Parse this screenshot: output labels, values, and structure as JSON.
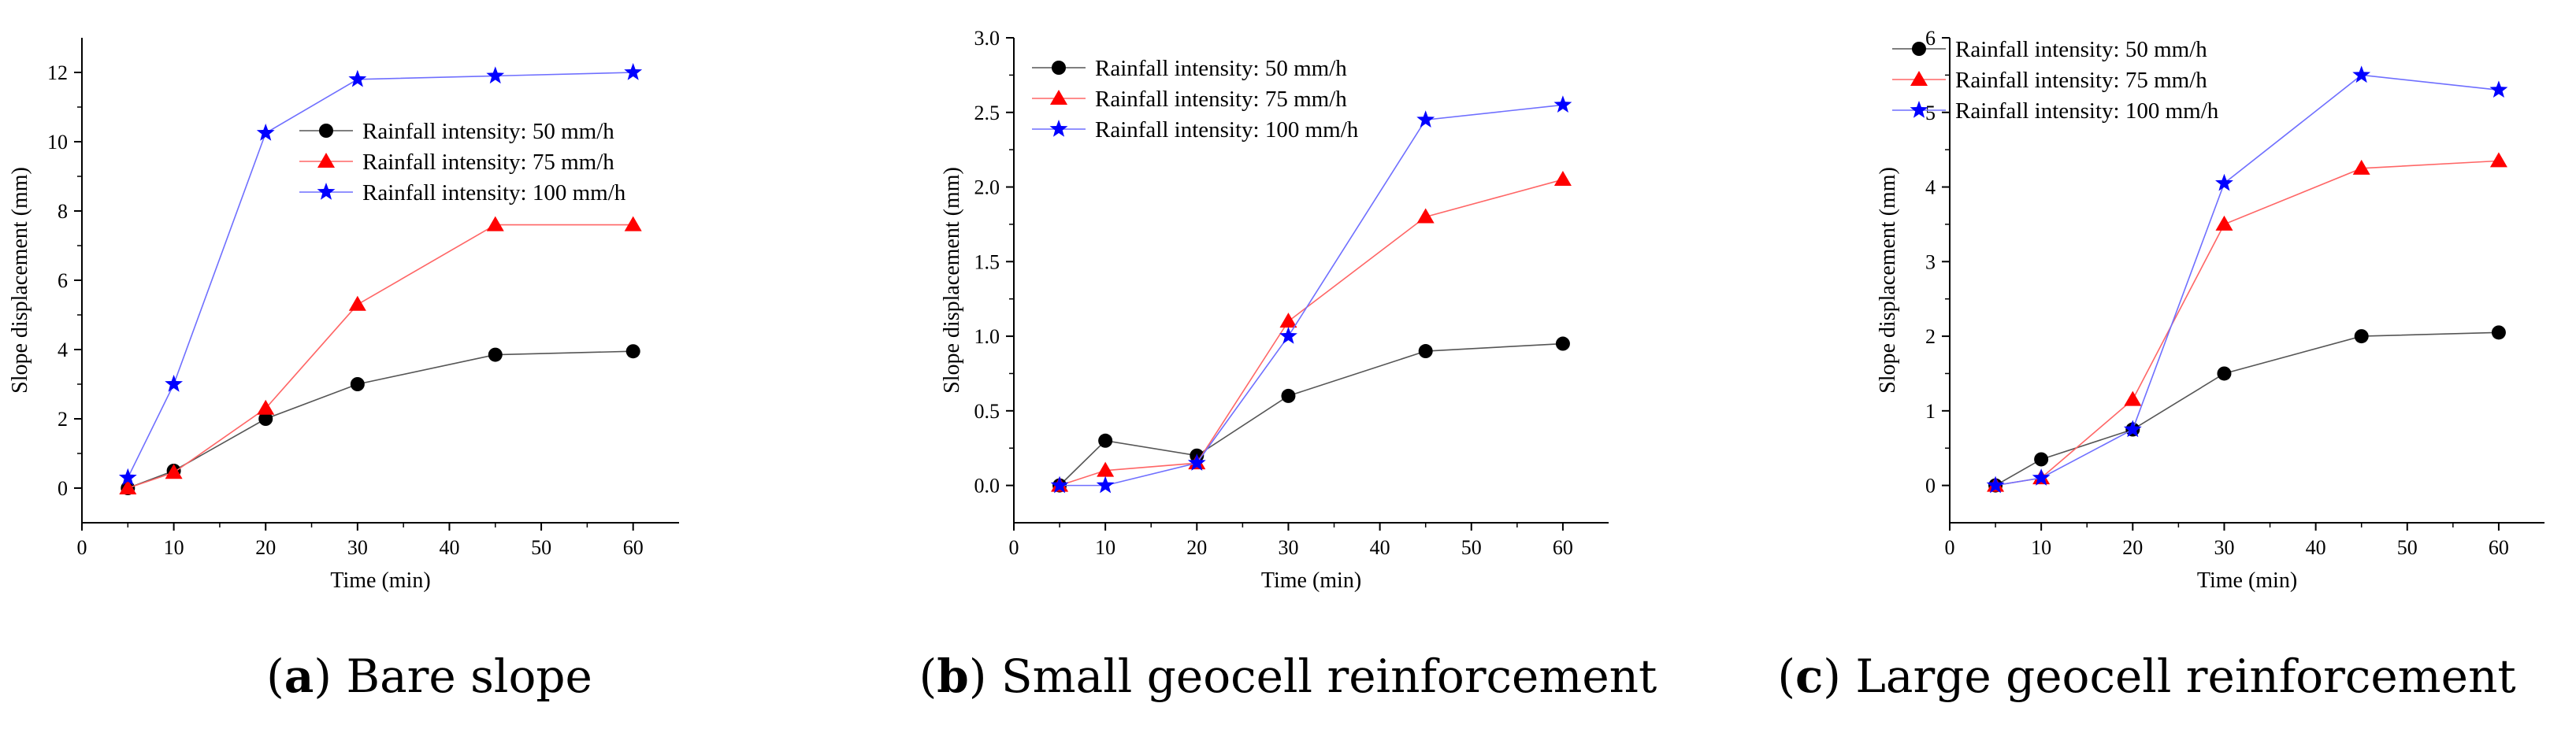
{
  "figure": {
    "captions": [
      {
        "label": "a",
        "text": "Bare slope"
      },
      {
        "label": "b",
        "text": "Small geocell reinforcement"
      },
      {
        "label": "c",
        "text": "Large geocell reinforcement"
      }
    ]
  },
  "colors": {
    "series_50": "#000000",
    "series_75": "#ff0000",
    "series_100": "#0000ff",
    "line_50": "#555555",
    "line_75": "#ff6666",
    "line_100": "#6f6fff"
  },
  "chart_data": [
    {
      "type": "line",
      "title": "Bare slope",
      "xlabel": "Time (min)",
      "ylabel": "Slope displacement (mm)",
      "xlim": [
        0,
        65
      ],
      "ylim": [
        -1,
        13
      ],
      "xticks": [
        0,
        10,
        20,
        30,
        40,
        50,
        60
      ],
      "yticks": [
        0,
        2,
        4,
        6,
        8,
        10,
        12
      ],
      "ytick_labels": [
        "0",
        "2",
        "4",
        "6",
        "8",
        "10",
        "12"
      ],
      "legend_position": "upper-middle-right",
      "x": [
        5,
        10,
        20,
        30,
        45,
        60
      ],
      "series": [
        {
          "name": "Rainfall intensity: 50 mm/h",
          "marker": "circle",
          "values": [
            0.0,
            0.5,
            2.0,
            3.0,
            3.85,
            3.95
          ]
        },
        {
          "name": "Rainfall intensity: 75 mm/h",
          "marker": "triangle",
          "values": [
            0.0,
            0.45,
            2.3,
            5.3,
            7.6,
            7.6
          ]
        },
        {
          "name": "Rainfall intensity: 100 mm/h",
          "marker": "star",
          "values": [
            0.3,
            3.0,
            10.25,
            11.8,
            11.9,
            12.0
          ]
        }
      ]
    },
    {
      "type": "line",
      "title": "Small geocell reinforcement",
      "xlabel": "Time (min)",
      "ylabel": "Slope displacement (mm)",
      "xlim": [
        0,
        65
      ],
      "ylim": [
        -0.25,
        3.0
      ],
      "xticks": [
        0,
        10,
        20,
        30,
        40,
        50,
        60
      ],
      "yticks": [
        0,
        0.5,
        1.0,
        1.5,
        2.0,
        2.5,
        3.0
      ],
      "ytick_labels": [
        "0.0",
        "0.5",
        "1.0",
        "1.5",
        "2.0",
        "2.5",
        "3.0"
      ],
      "legend_position": "top-left",
      "x": [
        5,
        10,
        20,
        30,
        45,
        60
      ],
      "series": [
        {
          "name": "Rainfall intensity: 50 mm/h",
          "marker": "circle",
          "values": [
            0.0,
            0.3,
            0.2,
            0.6,
            0.9,
            0.95
          ]
        },
        {
          "name": "Rainfall intensity: 75 mm/h",
          "marker": "triangle",
          "values": [
            0.0,
            0.1,
            0.15,
            1.1,
            1.8,
            2.05
          ]
        },
        {
          "name": "Rainfall intensity: 100 mm/h",
          "marker": "star",
          "values": [
            0.0,
            0.0,
            0.15,
            1.0,
            2.45,
            2.55
          ]
        }
      ]
    },
    {
      "type": "line",
      "title": "Large geocell reinforcement",
      "xlabel": "Time (min)",
      "ylabel": "Slope displacement (mm)",
      "xlim": [
        0,
        65
      ],
      "ylim": [
        -0.5,
        6
      ],
      "xticks": [
        0,
        10,
        20,
        30,
        40,
        50,
        60
      ],
      "yticks": [
        0,
        1,
        2,
        3,
        4,
        5,
        6
      ],
      "ytick_labels": [
        "0",
        "1",
        "2",
        "3",
        "4",
        "5",
        "6"
      ],
      "legend_position": "top-left",
      "x": [
        5,
        10,
        20,
        30,
        45,
        60
      ],
      "series": [
        {
          "name": "Rainfall intensity: 50 mm/h",
          "marker": "circle",
          "values": [
            0.0,
            0.35,
            0.75,
            1.5,
            2.0,
            2.05
          ]
        },
        {
          "name": "Rainfall intensity: 75 mm/h",
          "marker": "triangle",
          "values": [
            0.0,
            0.1,
            1.15,
            3.5,
            4.25,
            4.35
          ]
        },
        {
          "name": "Rainfall intensity: 100 mm/h",
          "marker": "star",
          "values": [
            0.0,
            0.1,
            0.75,
            4.05,
            5.5,
            5.3
          ]
        }
      ]
    }
  ]
}
